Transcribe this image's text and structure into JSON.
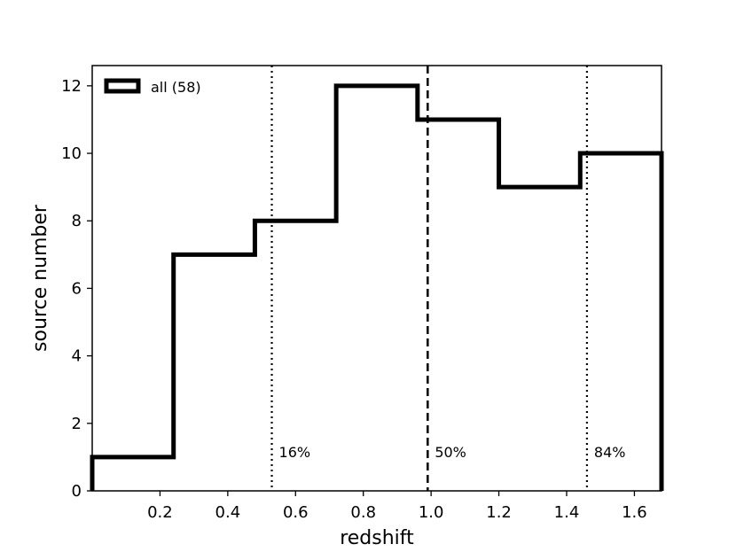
{
  "chart_data": {
    "type": "histogram",
    "xlabel": "redshift",
    "ylabel": "source number",
    "xlim": [
      0.0,
      1.68
    ],
    "ylim": [
      0,
      12.6
    ],
    "xticks": [
      "0.2",
      "0.4",
      "0.6",
      "0.8",
      "1.0",
      "1.2",
      "1.4",
      "1.6"
    ],
    "xtick_values": [
      0.2,
      0.4,
      0.6,
      0.8,
      1.0,
      1.2,
      1.4,
      1.6
    ],
    "yticks": [
      "0",
      "2",
      "4",
      "6",
      "8",
      "10",
      "12"
    ],
    "ytick_values": [
      0,
      2,
      4,
      6,
      8,
      10,
      12
    ],
    "bin_edges": [
      0.0,
      0.24,
      0.48,
      0.72,
      0.96,
      1.2,
      1.44,
      1.68
    ],
    "series": [
      {
        "name": "all (58)",
        "values": [
          1,
          7,
          8,
          12,
          11,
          9,
          10
        ],
        "color": "#000000"
      }
    ],
    "percentile_lines": [
      {
        "label": "16%",
        "x": 0.53,
        "style": "dotted"
      },
      {
        "label": "50%",
        "x": 0.99,
        "style": "dashed"
      },
      {
        "label": "84%",
        "x": 1.46,
        "style": "dotted"
      }
    ],
    "legend": {
      "position": "top-left",
      "entries": [
        "all (58)"
      ]
    },
    "grid": false
  }
}
